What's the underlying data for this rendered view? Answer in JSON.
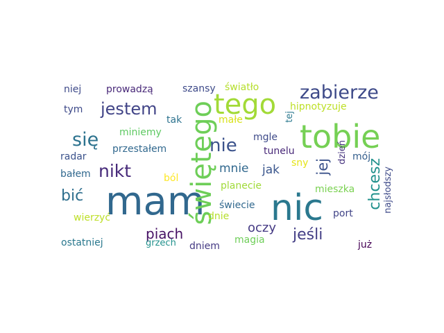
{
  "words": [
    {
      "text": "mam",
      "color": "#31688e"
    },
    {
      "text": "nic",
      "color": "#2a788e"
    },
    {
      "text": "tobie",
      "color": "#75d054"
    },
    {
      "text": "tego",
      "color": "#a2da37"
    },
    {
      "text": "świętego",
      "color": "#6ece58"
    },
    {
      "text": "zabierze",
      "color": "#3e4a89"
    },
    {
      "text": "nie",
      "color": "#3b528b"
    },
    {
      "text": "się",
      "color": "#2c728e"
    },
    {
      "text": "jestem",
      "color": "#414487"
    },
    {
      "text": "nikt",
      "color": "#472a7a"
    },
    {
      "text": "bić",
      "color": "#2e6f8e"
    },
    {
      "text": "piach",
      "color": "#471365"
    },
    {
      "text": "jeśli",
      "color": "#433e85"
    },
    {
      "text": "chcesz",
      "color": "#21918c"
    },
    {
      "text": "jej",
      "color": "#3b528b"
    },
    {
      "text": "oczy",
      "color": "#443983"
    },
    {
      "text": "jak",
      "color": "#39558c"
    },
    {
      "text": "mnie",
      "color": "#31688e"
    },
    {
      "text": "niej",
      "color": "#3e4a89"
    },
    {
      "text": "prowadzą",
      "color": "#482878"
    },
    {
      "text": "szansy",
      "color": "#3e4a89"
    },
    {
      "text": "światło",
      "color": "#b5de2b"
    },
    {
      "text": "hipnotyzuje",
      "color": "#bddf26"
    },
    {
      "text": "tym",
      "color": "#3e4a89"
    },
    {
      "text": "tak",
      "color": "#2c728e"
    },
    {
      "text": "małe",
      "color": "#d8e219"
    },
    {
      "text": "tej",
      "color": "#2a788e"
    },
    {
      "text": "miniemy",
      "color": "#5ec962"
    },
    {
      "text": "mgle",
      "color": "#3e4a89"
    },
    {
      "text": "przestałem",
      "color": "#31688e"
    },
    {
      "text": "tunelu",
      "color": "#482878"
    },
    {
      "text": "dzień",
      "color": "#46337e"
    },
    {
      "text": "mój",
      "color": "#355f8d"
    },
    {
      "text": "radar",
      "color": "#3b528b"
    },
    {
      "text": "bałem",
      "color": "#31688e"
    },
    {
      "text": "ból",
      "color": "#fde725"
    },
    {
      "text": "sny",
      "color": "#e5e419"
    },
    {
      "text": "planecie",
      "color": "#a0da39"
    },
    {
      "text": "mieszka",
      "color": "#7ad151"
    },
    {
      "text": "najsłodszy",
      "color": "#3e4a89"
    },
    {
      "text": "świecie",
      "color": "#31688e"
    },
    {
      "text": "dnie",
      "color": "#b5de2b"
    },
    {
      "text": "port",
      "color": "#414487"
    },
    {
      "text": "wierzyć",
      "color": "#bddf26"
    },
    {
      "text": "ostatniej",
      "color": "#2a788e"
    },
    {
      "text": "grzech",
      "color": "#21918c"
    },
    {
      "text": "dniem",
      "color": "#443983"
    },
    {
      "text": "magia",
      "color": "#6ece58"
    },
    {
      "text": "już",
      "color": "#440154"
    }
  ]
}
